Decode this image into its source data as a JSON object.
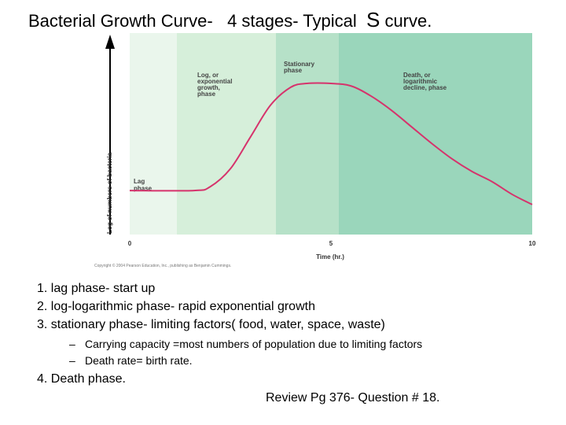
{
  "slide": {
    "title_main": "Bacterial Growth Curve-   4 stages- Typical  ",
    "title_s": "S",
    "title_end": " curve."
  },
  "diagram": {
    "phases": [
      {
        "name": "lag",
        "label_lines": [
          "Lag",
          "phase"
        ],
        "color": "#eaf6ec"
      },
      {
        "name": "log",
        "label_lines": [
          "Log, or",
          "exponential",
          "growth,",
          "phase"
        ],
        "color": "#d6efda"
      },
      {
        "name": "stationary",
        "label_lines": [
          "Stationary",
          "phase"
        ],
        "color": "#b6e1c8"
      },
      {
        "name": "death",
        "label_lines": [
          "Death, or",
          "logarithmic",
          "decline, phase"
        ],
        "color": "#9ad6bb"
      }
    ],
    "y_axis_label": "Log of numbers of bacteria",
    "x_axis_label": "Time (hr.)",
    "x_ticks": [
      "0",
      "5",
      "10"
    ],
    "curve_color": "#d6336c",
    "copyright": "Copyright © 2004 Pearson Education, Inc., publishing as Benjamin Cummings."
  },
  "chart_data": {
    "type": "line",
    "xlabel": "Time (hr.)",
    "ylabel": "Log of numbers of bacteria",
    "xlim": [
      0,
      10
    ],
    "x_ticks": [
      0,
      5,
      10
    ],
    "series": [
      {
        "x": [
          0,
          1.6,
          2.0,
          2.5,
          3.0,
          3.5,
          4.0,
          4.4,
          5.0,
          5.5,
          6.0,
          6.5,
          7.0,
          7.5,
          8.0,
          8.5,
          9.0,
          9.5,
          10.0
        ],
        "y": [
          0.16,
          0.16,
          0.19,
          0.33,
          0.58,
          0.83,
          0.97,
          1.0,
          1.0,
          0.98,
          0.9,
          0.79,
          0.66,
          0.53,
          0.41,
          0.31,
          0.23,
          0.13,
          0.05
        ]
      }
    ]
  },
  "notes": {
    "item1": "1. lag phase- start up",
    "item2": "2. log-logarithmic phase- rapid exponential growth",
    "item3": "3. stationary phase- limiting factors( food, water, space, waste)",
    "sub1_dash": "–",
    "sub1": "Carrying capacity =most numbers of population due to limiting factors",
    "sub2_dash": "–",
    "sub2": "Death rate= birth rate.",
    "item4": "4. Death phase.",
    "review": "Review Pg 376- Question # 18."
  }
}
